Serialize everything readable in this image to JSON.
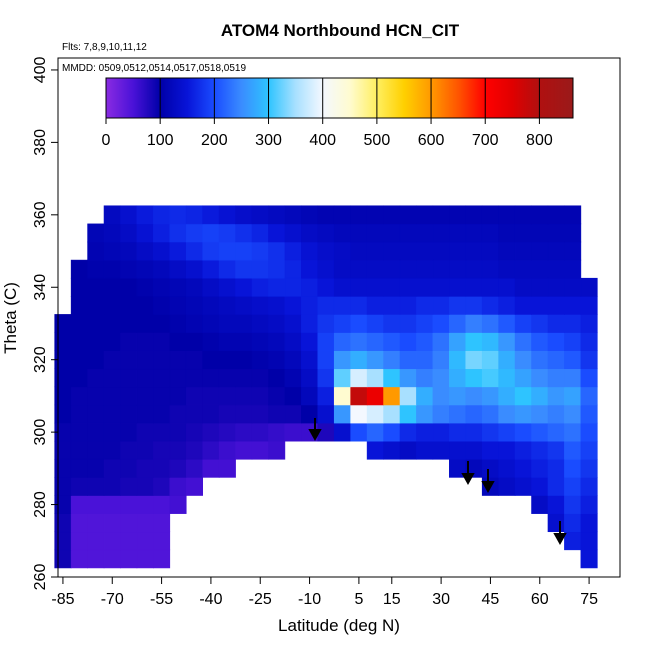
{
  "chart_data": {
    "type": "heatmap",
    "title": "ATOM4 Northbound HCN_CIT",
    "subtitle": "Flts: 7,8,9,10,11,12",
    "annotation": "MMDD: 0509,0512,0514,0517,0518,0519",
    "x_label": "Latitude (deg N)",
    "y_label": "Theta (C)",
    "xlim": [
      -86.5,
      84.4
    ],
    "ylim": [
      260,
      403.3
    ],
    "xticks": [
      -85,
      -70,
      -55,
      -40,
      -25,
      -10,
      5,
      15,
      30,
      45,
      60,
      75
    ],
    "yticks": [
      260,
      280,
      300,
      320,
      340,
      360,
      380,
      400
    ],
    "colorbar_lim": [
      0,
      862
    ],
    "colorbar_ticks": [
      0,
      100,
      200,
      300,
      400,
      500,
      600,
      700,
      800
    ],
    "colorscale": [
      [
        0,
        "#8a2be2"
      ],
      [
        50,
        "#4a12d8"
      ],
      [
        100,
        "#0000a8"
      ],
      [
        150,
        "#0814d8"
      ],
      [
        200,
        "#1a4cff"
      ],
      [
        250,
        "#3a8cff"
      ],
      [
        300,
        "#2ec4ff"
      ],
      [
        350,
        "#a8e0ff"
      ],
      [
        400,
        "#f4f8ff"
      ],
      [
        450,
        "#fffbd0"
      ],
      [
        500,
        "#ffef60"
      ],
      [
        550,
        "#ffd000"
      ],
      [
        600,
        "#ff9900"
      ],
      [
        650,
        "#ff5500"
      ],
      [
        700,
        "#ff0000"
      ],
      [
        750,
        "#e00000"
      ],
      [
        800,
        "#b01010"
      ],
      [
        862,
        "#9a1a1a"
      ]
    ],
    "x_edges": [
      -87.5,
      -82.5,
      -77.5,
      -72.5,
      -67.5,
      -62.5,
      -57.5,
      -52.5,
      -47.5,
      -42.5,
      -37.5,
      -32.5,
      -27.5,
      -22.5,
      -17.5,
      -12.5,
      -7.5,
      -2.5,
      2.5,
      7.5,
      12.5,
      17.5,
      22.5,
      27.5,
      32.5,
      37.5,
      42.5,
      47.5,
      52.5,
      57.5,
      62.5,
      67.5,
      72.5,
      77.5
    ],
    "y_edges": [
      262.5,
      267.5,
      272.5,
      277.5,
      282.5,
      287.5,
      292.5,
      297.5,
      302.5,
      307.5,
      312.5,
      317.5,
      322.5,
      327.5,
      332.5,
      337.5,
      342.5,
      347.5,
      352.5,
      357.5,
      362.5
    ],
    "z": [
      [
        90,
        45,
        45,
        45,
        45,
        45,
        45,
        null,
        null,
        null,
        null,
        null,
        null,
        null,
        null,
        null,
        null,
        null,
        null,
        null,
        null,
        null,
        null,
        null,
        null,
        null,
        null,
        null,
        null,
        null,
        null,
        null,
        150
      ],
      [
        90,
        45,
        45,
        45,
        45,
        45,
        45,
        null,
        null,
        null,
        null,
        null,
        null,
        null,
        null,
        null,
        null,
        null,
        null,
        null,
        null,
        null,
        null,
        null,
        null,
        null,
        null,
        null,
        null,
        null,
        null,
        160,
        150
      ],
      [
        90,
        45,
        45,
        45,
        45,
        45,
        45,
        null,
        null,
        null,
        null,
        null,
        null,
        null,
        null,
        null,
        null,
        null,
        null,
        null,
        null,
        null,
        null,
        null,
        null,
        null,
        null,
        null,
        null,
        null,
        140,
        170,
        150
      ],
      [
        95,
        50,
        50,
        50,
        50,
        50,
        50,
        55,
        null,
        null,
        null,
        null,
        null,
        null,
        null,
        null,
        null,
        null,
        null,
        null,
        null,
        null,
        null,
        null,
        null,
        null,
        null,
        null,
        null,
        130,
        150,
        180,
        160
      ],
      [
        95,
        90,
        90,
        90,
        85,
        85,
        80,
        60,
        55,
        null,
        null,
        null,
        null,
        null,
        null,
        null,
        null,
        null,
        null,
        null,
        null,
        null,
        null,
        null,
        null,
        null,
        120,
        130,
        140,
        150,
        170,
        190,
        170
      ],
      [
        95,
        95,
        95,
        90,
        90,
        85,
        85,
        80,
        70,
        55,
        55,
        null,
        null,
        null,
        null,
        null,
        null,
        null,
        null,
        null,
        null,
        null,
        null,
        null,
        130,
        120,
        130,
        140,
        150,
        160,
        170,
        200,
        180
      ],
      [
        95,
        95,
        95,
        95,
        90,
        90,
        85,
        85,
        80,
        70,
        60,
        55,
        55,
        60,
        null,
        null,
        null,
        null,
        null,
        150,
        140,
        130,
        140,
        140,
        140,
        140,
        150,
        150,
        160,
        170,
        180,
        210,
        190
      ],
      [
        95,
        95,
        95,
        95,
        95,
        90,
        90,
        90,
        85,
        80,
        75,
        70,
        70,
        65,
        60,
        60,
        80,
        140,
        200,
        220,
        200,
        170,
        160,
        160,
        170,
        170,
        180,
        190,
        200,
        210,
        220,
        230,
        200
      ],
      [
        100,
        95,
        95,
        95,
        95,
        95,
        95,
        90,
        90,
        90,
        85,
        85,
        85,
        90,
        90,
        100,
        140,
        260,
        400,
        380,
        350,
        300,
        260,
        240,
        230,
        220,
        230,
        250,
        260,
        250,
        240,
        250,
        210
      ],
      [
        100,
        95,
        95,
        95,
        95,
        95,
        95,
        95,
        90,
        90,
        90,
        90,
        90,
        95,
        100,
        120,
        160,
        450,
        780,
        730,
        600,
        350,
        280,
        250,
        260,
        250,
        260,
        280,
        300,
        280,
        260,
        270,
        220
      ],
      [
        100,
        100,
        95,
        95,
        95,
        95,
        95,
        95,
        95,
        95,
        95,
        95,
        95,
        100,
        110,
        130,
        180,
        320,
        380,
        350,
        300,
        260,
        240,
        250,
        280,
        300,
        310,
        290,
        270,
        250,
        240,
        240,
        200
      ],
      [
        100,
        100,
        100,
        95,
        95,
        95,
        95,
        95,
        95,
        100,
        100,
        100,
        105,
        110,
        120,
        140,
        190,
        260,
        280,
        260,
        240,
        220,
        220,
        240,
        290,
        330,
        320,
        280,
        250,
        230,
        220,
        210,
        180
      ],
      [
        100,
        100,
        100,
        100,
        95,
        95,
        95,
        100,
        100,
        105,
        110,
        110,
        115,
        120,
        130,
        150,
        190,
        220,
        230,
        220,
        210,
        200,
        210,
        230,
        270,
        300,
        290,
        260,
        230,
        210,
        200,
        190,
        170
      ],
      [
        100,
        100,
        100,
        100,
        100,
        100,
        100,
        105,
        110,
        115,
        120,
        120,
        125,
        130,
        140,
        160,
        180,
        190,
        200,
        190,
        180,
        180,
        190,
        200,
        220,
        240,
        230,
        210,
        190,
        180,
        170,
        170,
        160
      ],
      [
        null,
        100,
        100,
        100,
        100,
        100,
        105,
        110,
        115,
        120,
        125,
        130,
        135,
        140,
        150,
        160,
        170,
        170,
        170,
        160,
        160,
        160,
        170,
        170,
        180,
        180,
        170,
        160,
        150,
        150,
        150,
        150,
        150
      ],
      [
        null,
        100,
        100,
        100,
        100,
        105,
        110,
        115,
        120,
        130,
        140,
        150,
        160,
        165,
        165,
        160,
        150,
        140,
        140,
        140,
        140,
        140,
        140,
        140,
        140,
        140,
        140,
        140,
        130,
        130,
        130,
        130,
        130
      ],
      [
        null,
        100,
        105,
        105,
        110,
        115,
        120,
        130,
        140,
        155,
        170,
        180,
        180,
        175,
        165,
        150,
        140,
        130,
        130,
        130,
        130,
        130,
        130,
        130,
        130,
        130,
        130,
        125,
        125,
        125,
        125,
        125,
        null
      ],
      [
        null,
        null,
        110,
        115,
        120,
        130,
        140,
        155,
        170,
        185,
        190,
        190,
        185,
        175,
        160,
        145,
        135,
        130,
        125,
        125,
        125,
        125,
        125,
        125,
        125,
        125,
        125,
        120,
        120,
        120,
        120,
        120,
        null
      ],
      [
        null,
        null,
        115,
        120,
        130,
        145,
        160,
        175,
        185,
        190,
        185,
        175,
        165,
        150,
        140,
        130,
        125,
        120,
        120,
        120,
        120,
        120,
        120,
        120,
        120,
        120,
        120,
        115,
        115,
        115,
        115,
        115,
        null
      ],
      [
        null,
        null,
        null,
        125,
        140,
        155,
        165,
        170,
        165,
        155,
        145,
        135,
        130,
        125,
        120,
        115,
        110,
        110,
        110,
        110,
        110,
        110,
        110,
        110,
        110,
        110,
        110,
        110,
        110,
        110,
        110,
        110,
        null
      ]
    ]
  }
}
